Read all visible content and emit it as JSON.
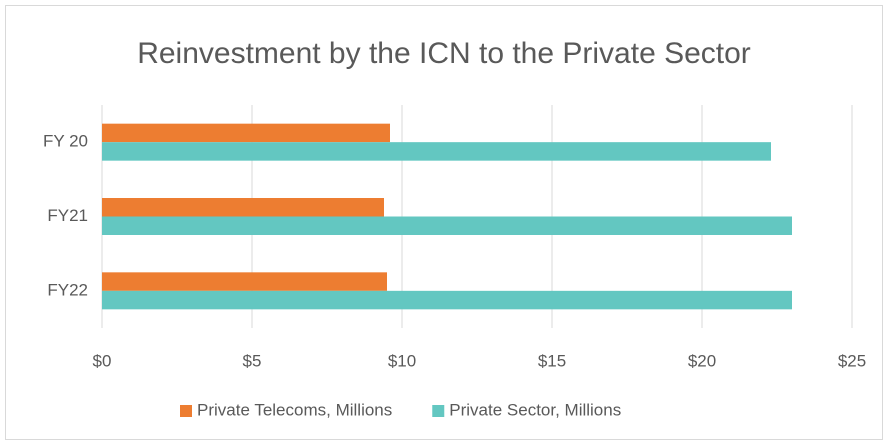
{
  "chart_data": {
    "type": "bar",
    "orientation": "horizontal",
    "title": "Reinvestment by the ICN to the Private Sector",
    "categories": [
      "FY 20",
      "FY21",
      "FY22"
    ],
    "series": [
      {
        "name": "Private Telecoms, Millions",
        "color": "#ed7d31",
        "values": [
          9.6,
          9.4,
          9.5
        ]
      },
      {
        "name": "Private Sector, Millions",
        "color": "#63c7c1",
        "values": [
          22.3,
          23.0,
          23.0
        ]
      }
    ],
    "xlim": [
      0,
      25
    ],
    "xticks": [
      {
        "value": 0,
        "label": "$0"
      },
      {
        "value": 5,
        "label": "$5"
      },
      {
        "value": 10,
        "label": "$10"
      },
      {
        "value": 15,
        "label": "$15"
      },
      {
        "value": 20,
        "label": "$20"
      },
      {
        "value": 25,
        "label": "$25"
      }
    ],
    "grid": true,
    "legend": "bottom"
  }
}
